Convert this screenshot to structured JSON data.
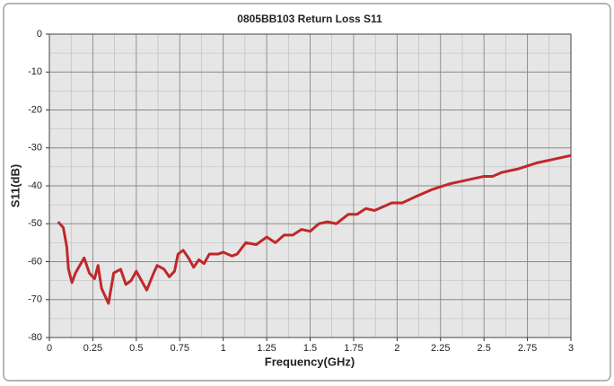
{
  "chart_data": {
    "type": "line",
    "title": "0805BB103 Return Loss S11",
    "x_label": "Frequency(GHz)",
    "y_label": "S11(dB)",
    "xlim": [
      0,
      3
    ],
    "xticks": [
      0,
      0.25,
      0.5,
      0.75,
      1,
      1.25,
      1.5,
      1.75,
      2,
      2.25,
      2.5,
      2.75,
      3
    ],
    "ylim": [
      -80,
      0
    ],
    "yticks": [
      0,
      -10,
      -20,
      -30,
      -40,
      -50,
      -60,
      -70,
      -80
    ],
    "grid": true,
    "x": [
      0.05,
      0.08,
      0.1,
      0.11,
      0.13,
      0.15,
      0.2,
      0.23,
      0.26,
      0.28,
      0.3,
      0.34,
      0.37,
      0.41,
      0.44,
      0.47,
      0.5,
      0.53,
      0.56,
      0.6,
      0.62,
      0.66,
      0.69,
      0.72,
      0.74,
      0.77,
      0.8,
      0.83,
      0.86,
      0.89,
      0.92,
      0.97,
      1.0,
      1.05,
      1.08,
      1.13,
      1.19,
      1.25,
      1.3,
      1.35,
      1.4,
      1.45,
      1.5,
      1.55,
      1.6,
      1.65,
      1.72,
      1.77,
      1.82,
      1.87,
      1.92,
      1.97,
      2.03,
      2.1,
      2.2,
      2.3,
      2.4,
      2.5,
      2.55,
      2.6,
      2.7,
      2.8,
      2.9,
      3.0
    ],
    "series": [
      {
        "name": "S11",
        "color": "#c0282a",
        "values": [
          -49.5,
          -51,
          -56,
          -62,
          -65.5,
          -63,
          -59,
          -63,
          -64.5,
          -61,
          -67,
          -71,
          -63,
          -62,
          -66,
          -65,
          -62.5,
          -65,
          -67.5,
          -63,
          -61,
          -62,
          -64,
          -62.5,
          -58,
          -57,
          -59,
          -61.5,
          -59.5,
          -60.5,
          -58,
          -58,
          -57.5,
          -58.5,
          -58,
          -55,
          -55.5,
          -53.5,
          -55,
          -53,
          -53,
          -51.5,
          -52,
          -50,
          -49.5,
          -50,
          -47.5,
          -47.5,
          -46,
          -46.5,
          -45.5,
          -44.5,
          -44.5,
          -43,
          -41,
          -39.5,
          -38.5,
          -37.5,
          -37.5,
          -36.5,
          -35.5,
          -34,
          -33,
          -32
        ]
      }
    ]
  }
}
